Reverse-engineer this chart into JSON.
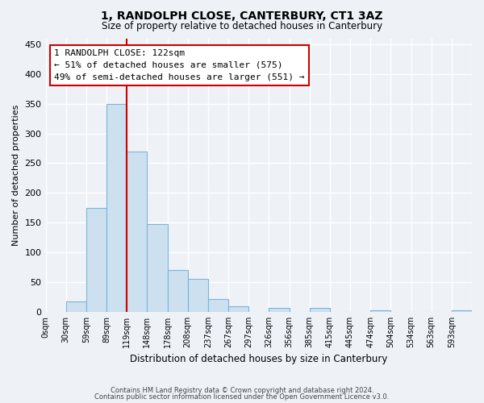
{
  "title1": "1, RANDOLPH CLOSE, CANTERBURY, CT1 3AZ",
  "title2": "Size of property relative to detached houses in Canterbury",
  "xlabel": "Distribution of detached houses by size in Canterbury",
  "ylabel": "Number of detached properties",
  "bar_labels": [
    "0sqm",
    "30sqm",
    "59sqm",
    "89sqm",
    "119sqm",
    "148sqm",
    "178sqm",
    "208sqm",
    "237sqm",
    "267sqm",
    "297sqm",
    "326sqm",
    "356sqm",
    "385sqm",
    "415sqm",
    "445sqm",
    "474sqm",
    "504sqm",
    "534sqm",
    "563sqm",
    "593sqm"
  ],
  "bar_heights": [
    0,
    18,
    175,
    350,
    270,
    148,
    70,
    55,
    22,
    10,
    0,
    7,
    0,
    7,
    0,
    0,
    2,
    0,
    0,
    0,
    2
  ],
  "bar_color": "#cce0f0",
  "bar_edge_color": "#7ab5d8",
  "property_line_x": 4,
  "property_line_color": "#cc0000",
  "annotation_title": "1 RANDOLPH CLOSE: 122sqm",
  "annotation_line1": "← 51% of detached houses are smaller (575)",
  "annotation_line2": "49% of semi-detached houses are larger (551) →",
  "annotation_box_color": "#ffffff",
  "annotation_box_edge": "#cc0000",
  "ylim": [
    0,
    460
  ],
  "yticks": [
    0,
    50,
    100,
    150,
    200,
    250,
    300,
    350,
    400,
    450
  ],
  "footnote1": "Contains HM Land Registry data © Crown copyright and database right 2024.",
  "footnote2": "Contains public sector information licensed under the Open Government Licence v3.0.",
  "background_color": "#eef2f7",
  "grid_color": "#ffffff"
}
